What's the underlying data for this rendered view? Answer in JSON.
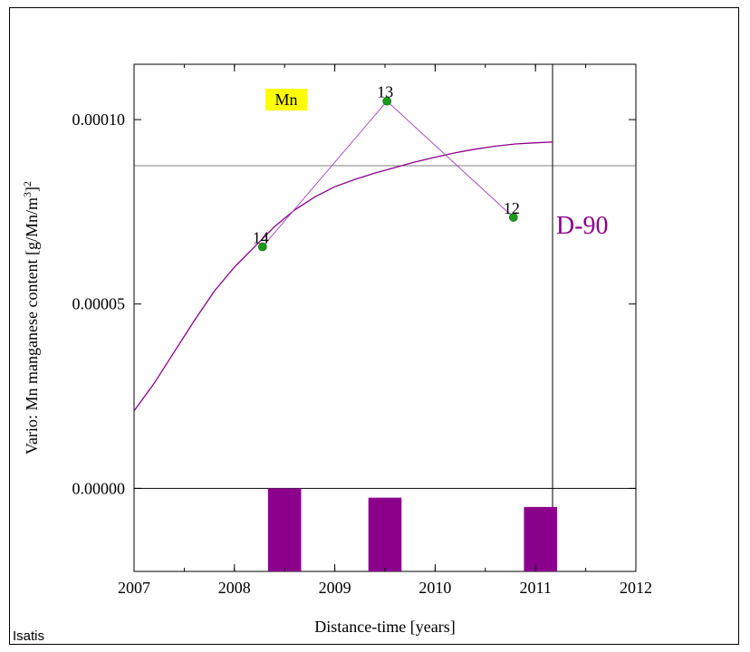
{
  "software": "Isatis",
  "colors": {
    "model": "#8b008b",
    "experimental": "#a040c0",
    "points": "#1a9a1a",
    "bars": "#8b008b",
    "sill": "#000000",
    "badge_bg": "#ffff00"
  },
  "chart_data": {
    "type": "line",
    "xlabel": "Distance-time [years]",
    "ylabel_main": "Vario: Mn manganese content [g/Mn/m",
    "ylabel_sup1": "3",
    "ylabel_close": "]",
    "ylabel_sup2": "2",
    "variable_badge": "Mn",
    "direction_label": "D-90",
    "xlim": [
      2007,
      2012
    ],
    "x_ticks": [
      "2007",
      "2008",
      "2009",
      "2010",
      "2011",
      "2012"
    ],
    "ylim": [
      -2.25e-05,
      0.000115
    ],
    "y_ticks": [
      "0.00000",
      "0.00005",
      "0.00010"
    ],
    "y_tick_values": [
      0,
      5e-05,
      0.0001
    ],
    "sill_value": 8.75e-05,
    "cutoff_x": 2011.17,
    "experimental": [
      {
        "x": 2008.28,
        "y": 6.55e-05,
        "label": "14"
      },
      {
        "x": 2009.52,
        "y": 0.000105,
        "label": "13"
      },
      {
        "x": 2010.78,
        "y": 7.35e-05,
        "label": "12"
      }
    ],
    "model_curve": [
      [
        2007.0,
        2.1e-05
      ],
      [
        2007.2,
        2.85e-05
      ],
      [
        2007.4,
        3.7e-05
      ],
      [
        2007.6,
        4.55e-05
      ],
      [
        2007.8,
        5.35e-05
      ],
      [
        2008.0,
        6e-05
      ],
      [
        2008.2,
        6.55e-05
      ],
      [
        2008.4,
        7.1e-05
      ],
      [
        2008.6,
        7.55e-05
      ],
      [
        2008.8,
        7.9e-05
      ],
      [
        2009.0,
        8.18e-05
      ],
      [
        2009.2,
        8.38e-05
      ],
      [
        2009.4,
        8.55e-05
      ],
      [
        2009.6,
        8.7e-05
      ],
      [
        2009.8,
        8.85e-05
      ],
      [
        2010.0,
        8.98e-05
      ],
      [
        2010.2,
        9.1e-05
      ],
      [
        2010.4,
        9.2e-05
      ],
      [
        2010.6,
        9.28e-05
      ],
      [
        2010.8,
        9.34e-05
      ],
      [
        2011.0,
        9.37e-05
      ],
      [
        2011.17,
        9.39e-05
      ]
    ],
    "pair_bars": [
      {
        "x": 2008.5,
        "value": 14
      },
      {
        "x": 2009.5,
        "value": 13
      },
      {
        "x": 2011.05,
        "value": 12
      }
    ]
  }
}
